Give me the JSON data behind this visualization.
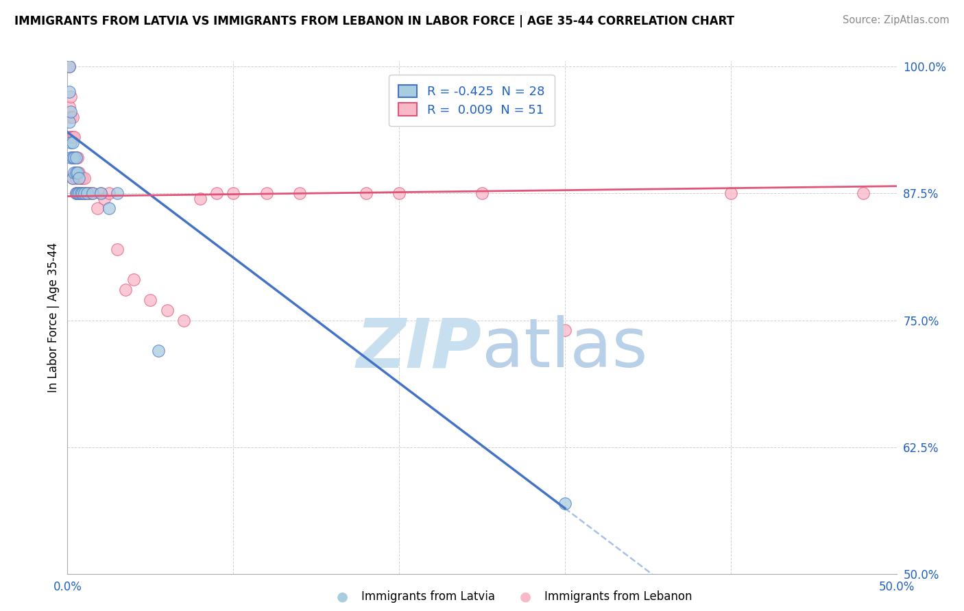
{
  "title": "IMMIGRANTS FROM LATVIA VS IMMIGRANTS FROM LEBANON IN LABOR FORCE | AGE 35-44 CORRELATION CHART",
  "source": "Source: ZipAtlas.com",
  "ylabel": "In Labor Force | Age 35-44",
  "xlim": [
    0.0,
    0.5
  ],
  "ylim": [
    0.5,
    1.005
  ],
  "xticks": [
    0.0,
    0.1,
    0.2,
    0.3,
    0.4,
    0.5
  ],
  "xticklabels": [
    "0.0%",
    "",
    "",
    "",
    "",
    "50.0%"
  ],
  "yticks": [
    0.5,
    0.625,
    0.75,
    0.875,
    1.0
  ],
  "yticklabels": [
    "50.0%",
    "62.5%",
    "75.0%",
    "87.5%",
    "100.0%"
  ],
  "latvia_R": -0.425,
  "latvia_N": 28,
  "lebanon_R": 0.009,
  "lebanon_N": 51,
  "latvia_color": "#a8cce0",
  "lebanon_color": "#f9b8c8",
  "latvia_line_color": "#4472c4",
  "lebanon_line_color": "#e05577",
  "latvia_x": [
    0.001,
    0.001,
    0.001,
    0.002,
    0.002,
    0.002,
    0.003,
    0.003,
    0.003,
    0.004,
    0.004,
    0.005,
    0.005,
    0.005,
    0.006,
    0.006,
    0.007,
    0.007,
    0.008,
    0.009,
    0.01,
    0.012,
    0.015,
    0.02,
    0.025,
    0.03,
    0.055,
    0.3
  ],
  "latvia_y": [
    1.0,
    0.975,
    0.945,
    0.955,
    0.925,
    0.91,
    0.925,
    0.91,
    0.89,
    0.91,
    0.895,
    0.91,
    0.895,
    0.875,
    0.895,
    0.875,
    0.89,
    0.875,
    0.875,
    0.875,
    0.875,
    0.875,
    0.875,
    0.875,
    0.86,
    0.875,
    0.72,
    0.57
  ],
  "lebanon_x": [
    0.001,
    0.001,
    0.001,
    0.002,
    0.002,
    0.002,
    0.003,
    0.003,
    0.003,
    0.003,
    0.004,
    0.004,
    0.005,
    0.005,
    0.005,
    0.006,
    0.006,
    0.007,
    0.007,
    0.008,
    0.008,
    0.009,
    0.009,
    0.01,
    0.01,
    0.011,
    0.012,
    0.013,
    0.014,
    0.015,
    0.018,
    0.02,
    0.022,
    0.025,
    0.03,
    0.035,
    0.04,
    0.05,
    0.06,
    0.07,
    0.08,
    0.09,
    0.1,
    0.12,
    0.14,
    0.18,
    0.2,
    0.25,
    0.3,
    0.4,
    0.48
  ],
  "lebanon_y": [
    1.0,
    0.96,
    0.93,
    0.97,
    0.95,
    0.93,
    0.95,
    0.93,
    0.91,
    0.89,
    0.93,
    0.91,
    0.91,
    0.89,
    0.875,
    0.91,
    0.875,
    0.895,
    0.875,
    0.89,
    0.875,
    0.89,
    0.875,
    0.89,
    0.875,
    0.875,
    0.875,
    0.875,
    0.875,
    0.875,
    0.86,
    0.875,
    0.87,
    0.875,
    0.82,
    0.78,
    0.79,
    0.77,
    0.76,
    0.75,
    0.87,
    0.875,
    0.875,
    0.875,
    0.875,
    0.875,
    0.875,
    0.875,
    0.74,
    0.875,
    0.875
  ],
  "lv_line_x0": 0.0,
  "lv_line_y0": 0.935,
  "lv_line_x1": 0.3,
  "lv_line_y1": 0.565,
  "lv_line_solid_end": 0.3,
  "lv_line_dash_end": 0.5,
  "lb_line_x0": 0.0,
  "lb_line_y0": 0.872,
  "lb_line_x1": 0.5,
  "lb_line_y1": 0.882
}
